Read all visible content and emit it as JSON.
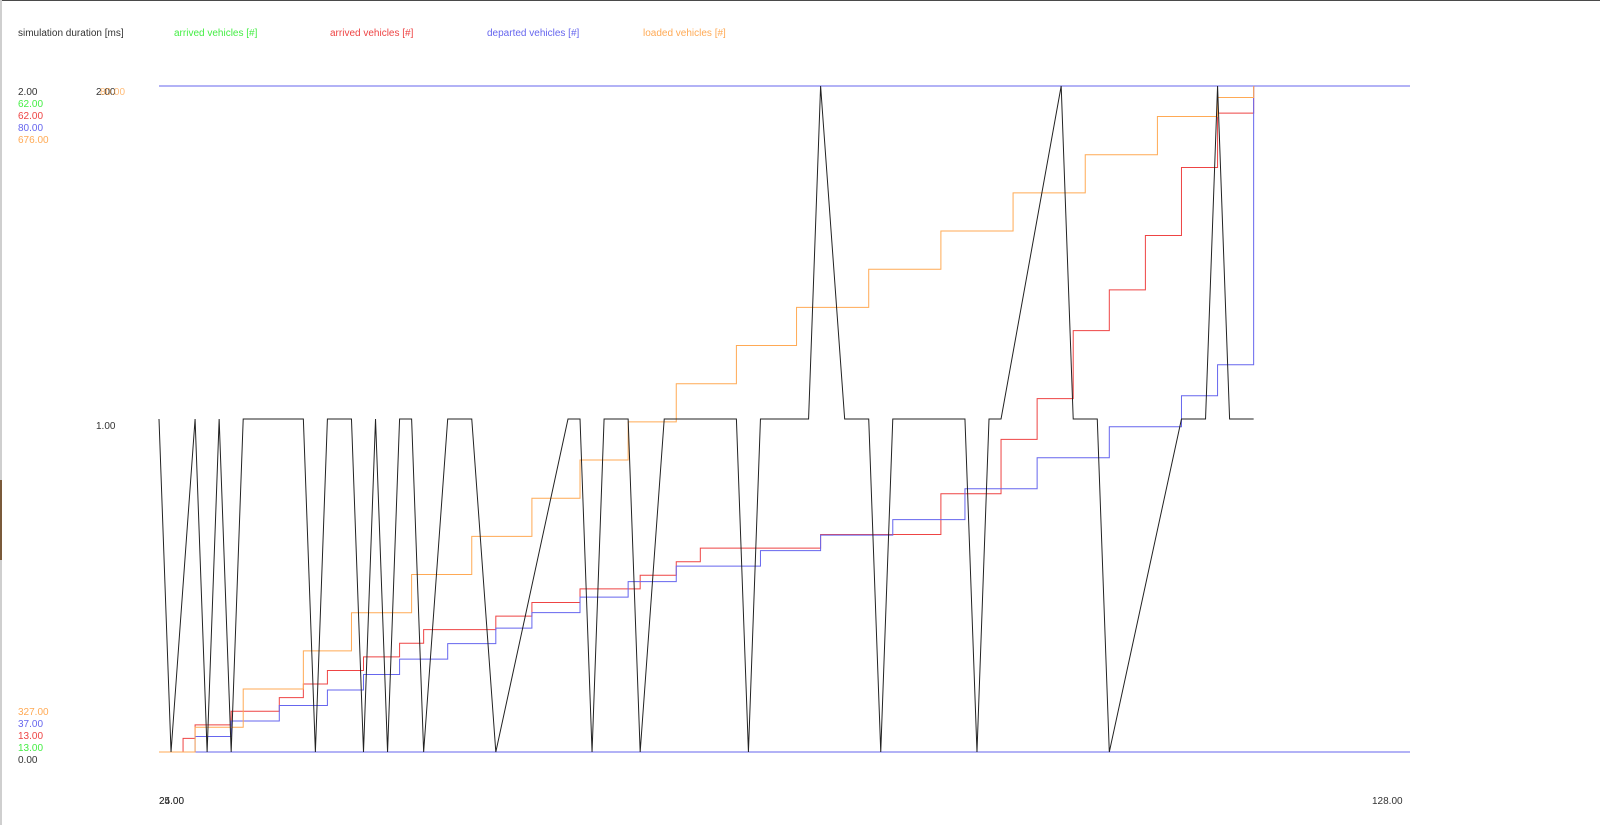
{
  "chart_data": {
    "type": "line",
    "legend": [
      {
        "label": "simulation duration [ms]",
        "color": "#333333"
      },
      {
        "label": "arrived vehicles [#]",
        "color": "#44ee44"
      },
      {
        "label": "arrived vehicles [#]",
        "color": "#ee4444"
      },
      {
        "label": "departed vehicles [#]",
        "color": "#6666ee"
      },
      {
        "label": "loaded vehicles [#]",
        "color": "#ffaa55"
      }
    ],
    "left_axis_max_labels": [
      {
        "text": "2.00",
        "color": "#333333"
      },
      {
        "text": "62.00",
        "color": "#44ee44"
      },
      {
        "text": "62.00",
        "color": "#ee4444"
      },
      {
        "text": "80.00",
        "color": "#6666ee"
      },
      {
        "text": "676.00",
        "color": "#ffaa55"
      }
    ],
    "left_axis_min_labels": [
      {
        "text": "327.00",
        "color": "#ffaa55"
      },
      {
        "text": "37.00",
        "color": "#6666ee"
      },
      {
        "text": "13.00",
        "color": "#ee4444"
      },
      {
        "text": "13.00",
        "color": "#44ee44"
      },
      {
        "text": "0.00",
        "color": "#333333"
      }
    ],
    "mid_axis_labels": [
      {
        "text": "2.00",
        "color": "#333333"
      },
      {
        "text": "80.00",
        "color": "#ffaa55"
      }
    ],
    "mid_label": "1.00",
    "x_labels": [
      "24.00",
      "25.00",
      "128.00"
    ],
    "xlim": [
      25,
      128
    ],
    "series": [
      {
        "color": "#222222",
        "x": [
          25,
          26,
          28,
          29,
          30,
          31,
          32,
          33,
          37,
          38,
          39,
          41,
          42,
          43,
          44,
          45,
          46,
          47,
          49,
          51,
          53,
          59,
          60,
          61,
          62,
          63,
          64,
          65,
          67,
          69,
          73,
          74,
          75,
          76,
          79,
          80,
          82,
          83,
          84,
          85,
          86,
          92,
          93,
          94,
          95,
          100,
          101,
          102,
          103,
          104,
          110,
          111,
          112,
          113,
          114,
          115,
          116
        ],
        "y": [
          1,
          0,
          1,
          0,
          1,
          0,
          1,
          1,
          1,
          0,
          1,
          1,
          0,
          1,
          0,
          1,
          1,
          0,
          1,
          1,
          0,
          1,
          1,
          0,
          1,
          1,
          1,
          0,
          1,
          1,
          1,
          0,
          1,
          1,
          1,
          2,
          1,
          1,
          1,
          0,
          1,
          1,
          0,
          1,
          1,
          2,
          1,
          1,
          1,
          0,
          1,
          1,
          1,
          2,
          1,
          1,
          1
        ]
      }
    ],
    "step_series": [
      {
        "name": "arrived",
        "color": "#ee4444",
        "points": [
          [
            26,
            13
          ],
          [
            27,
            14
          ],
          [
            28,
            15
          ],
          [
            31,
            16
          ],
          [
            35,
            17
          ],
          [
            37,
            18
          ],
          [
            39,
            19
          ],
          [
            42,
            20
          ],
          [
            45,
            21
          ],
          [
            47,
            22
          ],
          [
            49,
            22
          ],
          [
            53,
            23
          ],
          [
            56,
            24
          ],
          [
            60,
            25
          ],
          [
            64,
            25
          ],
          [
            65,
            26
          ],
          [
            68,
            27
          ],
          [
            70,
            28
          ],
          [
            75,
            28
          ],
          [
            80,
            29
          ],
          [
            90,
            32
          ],
          [
            95,
            36
          ],
          [
            98,
            39
          ],
          [
            101,
            44
          ],
          [
            104,
            47
          ],
          [
            107,
            51
          ],
          [
            110,
            56
          ],
          [
            113,
            60
          ],
          [
            116,
            62
          ]
        ]
      },
      {
        "name": "departed",
        "color": "#6666ee",
        "points": [
          [
            26,
            37
          ],
          [
            28,
            38
          ],
          [
            31,
            39
          ],
          [
            35,
            40
          ],
          [
            39,
            41
          ],
          [
            42,
            42
          ],
          [
            45,
            43
          ],
          [
            49,
            44
          ],
          [
            53,
            45
          ],
          [
            56,
            46
          ],
          [
            60,
            47
          ],
          [
            64,
            48
          ],
          [
            68,
            49
          ],
          [
            75,
            50
          ],
          [
            80,
            51
          ],
          [
            86,
            52
          ],
          [
            92,
            54
          ],
          [
            98,
            56
          ],
          [
            104,
            58
          ],
          [
            110,
            60
          ],
          [
            113,
            62
          ],
          [
            116,
            80
          ]
        ]
      },
      {
        "name": "loaded",
        "color": "#ffaa55",
        "points": [
          [
            26,
            327
          ],
          [
            28,
            340
          ],
          [
            32,
            360
          ],
          [
            37,
            380
          ],
          [
            41,
            400
          ],
          [
            46,
            420
          ],
          [
            51,
            440
          ],
          [
            56,
            460
          ],
          [
            60,
            480
          ],
          [
            64,
            500
          ],
          [
            68,
            520
          ],
          [
            73,
            540
          ],
          [
            78,
            560
          ],
          [
            84,
            580
          ],
          [
            90,
            600
          ],
          [
            96,
            620
          ],
          [
            102,
            640
          ],
          [
            108,
            660
          ],
          [
            113,
            670
          ],
          [
            116,
            676
          ]
        ]
      }
    ]
  }
}
